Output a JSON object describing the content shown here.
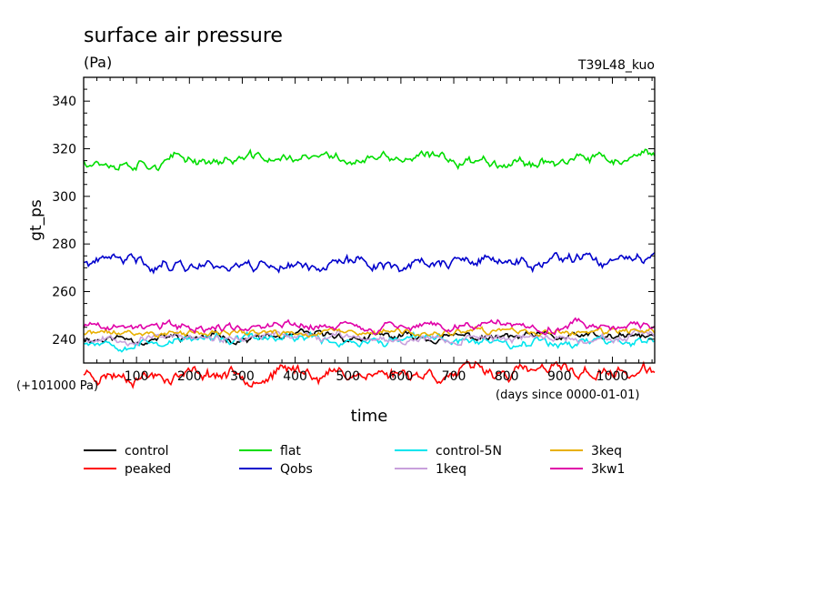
{
  "chart_data": {
    "type": "line",
    "title": "surface air pressure",
    "subtitle": "(Pa)",
    "experiment": "T39L48_kuo",
    "ylabel": "gt_ps",
    "xlabel": "time",
    "x_unit": "(days since 0000-01-01)",
    "y_offset_label": "(+101000 Pa)",
    "xlim": [
      0,
      1080
    ],
    "ylim": [
      230,
      350
    ],
    "xticks": [
      100,
      200,
      300,
      400,
      500,
      600,
      700,
      800,
      900,
      1000
    ],
    "yticks": [
      240,
      260,
      280,
      300,
      320,
      340
    ],
    "grid": false,
    "legend_position": "bottom",
    "series": [
      {
        "name": "control",
        "color": "#000000",
        "mean": 240.5,
        "amp": 2.2,
        "seed": 11
      },
      {
        "name": "peaked",
        "color": "#ff0000",
        "mean": 226.0,
        "amp": 3.5,
        "seed": 23
      },
      {
        "name": "flat",
        "color": "#00dd00",
        "mean": 315.5,
        "amp": 2.8,
        "seed": 37
      },
      {
        "name": "Qobs",
        "color": "#0000cc",
        "mean": 272.0,
        "amp": 3.2,
        "seed": 41
      },
      {
        "name": "control-5N",
        "color": "#00e5ee",
        "mean": 239.5,
        "amp": 2.5,
        "seed": 53
      },
      {
        "name": "1keq",
        "color": "#c8a0dc",
        "mean": 240.8,
        "amp": 2.2,
        "seed": 67
      },
      {
        "name": "3keq",
        "color": "#e8b000",
        "mean": 242.5,
        "amp": 1.8,
        "seed": 71
      },
      {
        "name": "3kw1",
        "color": "#e000a8",
        "mean": 245.5,
        "amp": 2.4,
        "seed": 89
      }
    ]
  }
}
